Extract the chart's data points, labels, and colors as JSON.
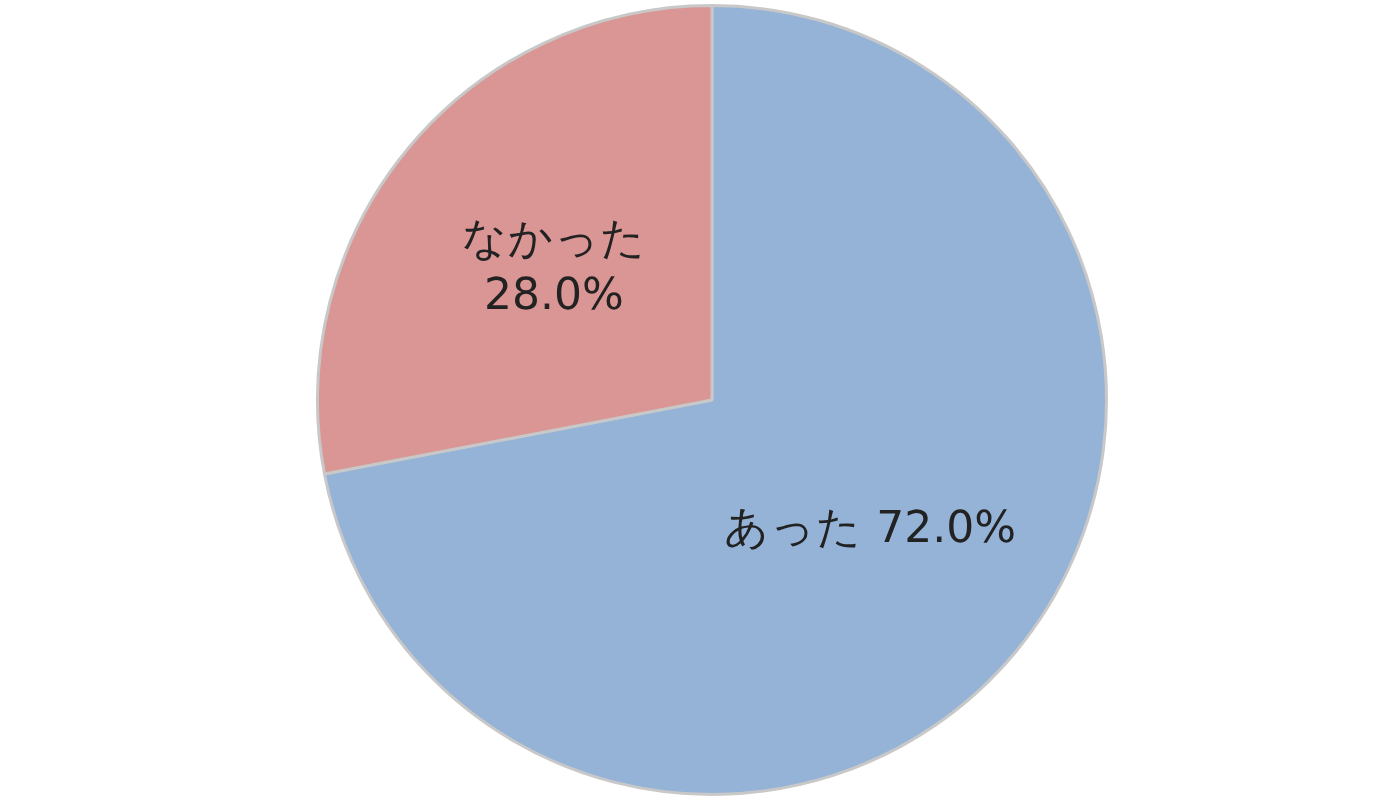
{
  "chart_data": {
    "type": "pie",
    "categories": [
      "あった",
      "なかった"
    ],
    "values": [
      72.0,
      28.0
    ],
    "colors": [
      "#95b3d7",
      "#d99694"
    ],
    "value_labels": [
      "72.0%",
      "28.0%"
    ],
    "legend": false
  }
}
